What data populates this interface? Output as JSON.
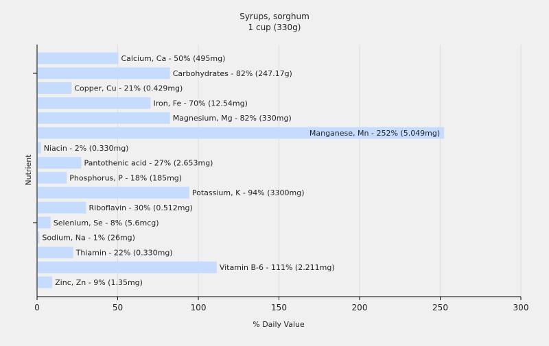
{
  "chart_data": {
    "type": "bar",
    "orientation": "horizontal",
    "title": "Syrups, sorghum",
    "subtitle": "1 cup (330g)",
    "xlabel": "% Daily Value",
    "ylabel": "Nutrient",
    "xlim": [
      0,
      300
    ],
    "xticks": [
      0,
      50,
      100,
      150,
      200,
      250,
      300
    ],
    "grid": true,
    "legend": "none",
    "bar_color": "#c6dcff",
    "categories": [
      "Calcium, Ca",
      "Carbohydrates",
      "Copper, Cu",
      "Iron, Fe",
      "Magnesium, Mg",
      "Manganese, Mn",
      "Niacin",
      "Pantothenic acid",
      "Phosphorus, P",
      "Potassium, K",
      "Riboflavin",
      "Selenium, Se",
      "Sodium, Na",
      "Thiamin",
      "Vitamin B-6",
      "Zinc, Zn"
    ],
    "values": [
      50,
      82,
      21,
      70,
      82,
      252,
      2,
      27,
      18,
      94,
      30,
      8,
      1,
      22,
      111,
      9
    ],
    "labels": [
      "Calcium, Ca - 50% (495mg)",
      "Carbohydrates - 82% (247.17g)",
      "Copper, Cu - 21% (0.429mg)",
      "Iron, Fe - 70% (12.54mg)",
      "Magnesium, Mg - 82% (330mg)",
      "Manganese, Mn - 252% (5.049mg)",
      "Niacin - 2% (0.330mg)",
      "Pantothenic acid - 27% (2.653mg)",
      "Phosphorus, P - 18% (185mg)",
      "Potassium, K - 94% (3300mg)",
      "Riboflavin - 30% (0.512mg)",
      "Selenium, Se - 8% (5.6mcg)",
      "Sodium, Na - 1% (26mg)",
      "Thiamin - 22% (0.330mg)",
      "Vitamin B-6 - 111% (2.211mg)",
      "Zinc, Zn - 9% (1.35mg)"
    ]
  }
}
